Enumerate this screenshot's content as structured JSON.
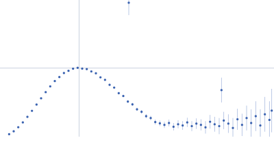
{
  "chart_data": {
    "type": "scatter",
    "x": [
      0.2,
      0.3,
      0.4,
      0.5,
      0.6,
      0.7,
      0.8,
      0.9,
      1.0,
      1.1,
      1.2,
      1.3,
      1.4,
      1.5,
      1.6,
      1.7,
      1.8,
      1.9,
      2.0,
      2.1,
      2.2,
      2.3,
      2.4,
      2.5,
      2.6,
      2.7,
      2.8,
      2.82,
      2.9,
      3.0,
      3.1,
      3.2,
      3.3,
      3.4,
      3.5,
      3.6,
      3.7,
      3.8,
      3.9,
      4.0,
      4.1,
      4.2,
      4.3,
      4.4,
      4.5,
      4.6,
      4.7,
      4.8,
      4.85,
      4.9,
      5.0,
      5.1,
      5.2,
      5.3,
      5.4,
      5.5,
      5.6,
      5.7,
      5.8,
      5.9,
      5.95
    ],
    "values": [
      0.04,
      0.087,
      0.152,
      0.23,
      0.319,
      0.416,
      0.517,
      0.618,
      0.717,
      0.809,
      0.895,
      0.96,
      1.024,
      1.06,
      1.095,
      1.108,
      1.096,
      1.088,
      1.05,
      1.02,
      0.955,
      0.915,
      0.835,
      0.79,
      0.7,
      0.655,
      0.565,
      2.156,
      0.52,
      0.44,
      0.4,
      0.33,
      0.3,
      0.235,
      0.215,
      0.19,
      0.22,
      0.16,
      0.2,
      0.18,
      0.23,
      0.17,
      0.21,
      0.19,
      0.15,
      0.24,
      0.2,
      0.17,
      0.75,
      0.26,
      0.21,
      0.14,
      0.28,
      0.19,
      0.3,
      0.22,
      0.33,
      0.18,
      0.36,
      0.27,
      0.42
    ],
    "errors": [
      0.003,
      0.003,
      0.004,
      0.004,
      0.005,
      0.005,
      0.006,
      0.006,
      0.007,
      0.007,
      0.008,
      0.008,
      0.009,
      0.009,
      0.01,
      0.01,
      0.011,
      0.011,
      0.012,
      0.012,
      0.013,
      0.014,
      0.015,
      0.016,
      0.018,
      0.02,
      0.022,
      0.2,
      0.024,
      0.026,
      0.03,
      0.033,
      0.036,
      0.04,
      0.045,
      0.05,
      0.055,
      0.06,
      0.065,
      0.07,
      0.075,
      0.08,
      0.085,
      0.09,
      0.1,
      0.11,
      0.12,
      0.13,
      0.2,
      0.14,
      0.15,
      0.16,
      0.17,
      0.18,
      0.2,
      0.22,
      0.24,
      0.26,
      0.28,
      0.3,
      0.35
    ],
    "color": "#3a62b0",
    "error_color": "#a9bbe0",
    "xlim": [
      0,
      6
    ],
    "ylim": [
      0,
      2.2
    ],
    "reference_lines": {
      "x": 1.732,
      "y": 1.104,
      "color": "#c9d0de"
    },
    "grid": false
  }
}
